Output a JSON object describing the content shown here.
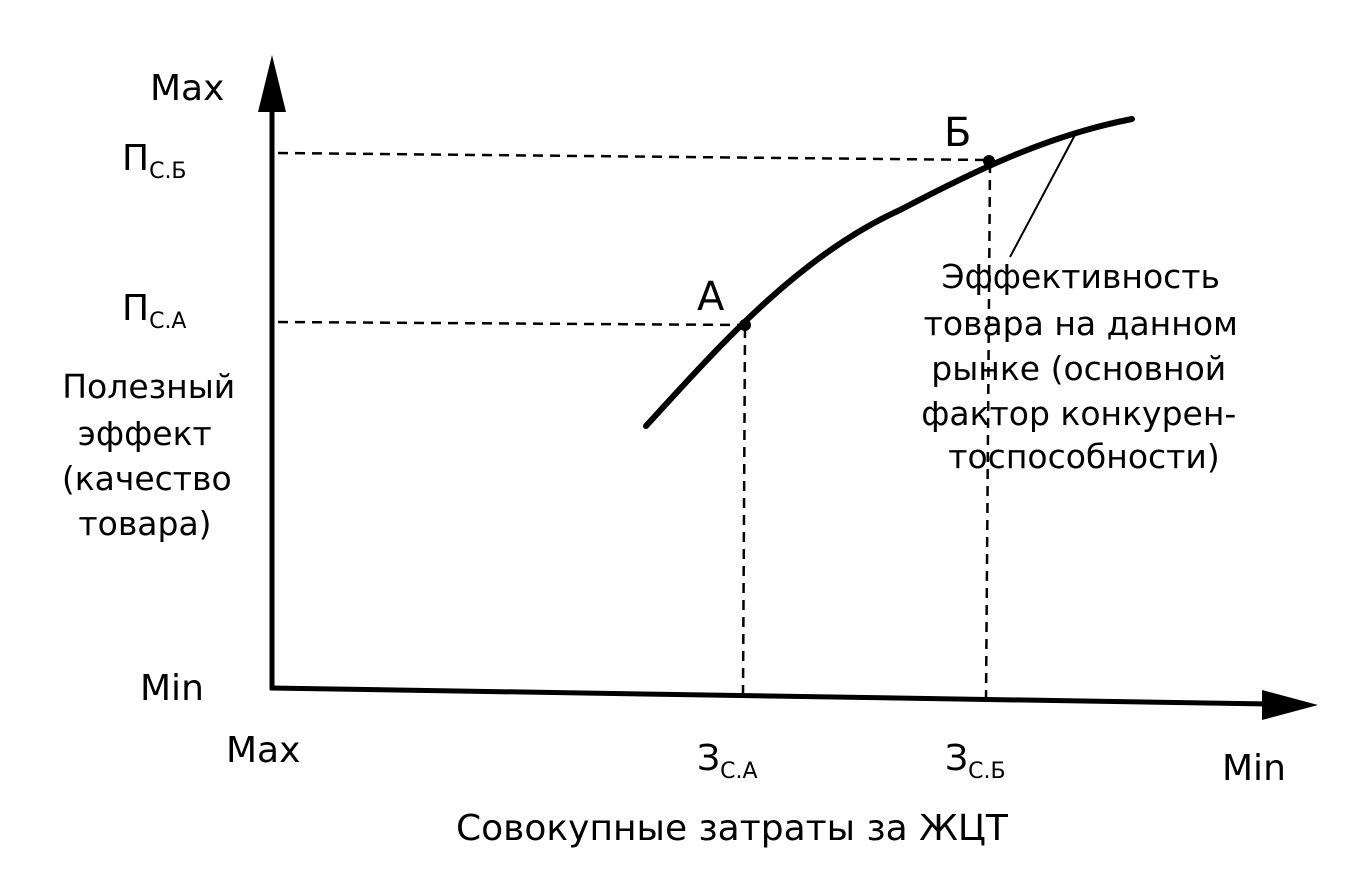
{
  "y_axis": {
    "max_label": "Max",
    "min_label": "Min",
    "title_lines": [
      "Полезный",
      "эффект",
      "(качество",
      "товара)"
    ],
    "tick_b": {
      "main": "П",
      "sub": "С.Б"
    },
    "tick_a": {
      "main": "П",
      "sub": "С.А"
    }
  },
  "x_axis": {
    "max_label": "Max",
    "min_label": "Min",
    "title": "Совокупные затраты за ЖЦТ",
    "tick_a": {
      "main": "З",
      "sub": "С.А"
    },
    "tick_b": {
      "main": "З",
      "sub": "С.Б"
    }
  },
  "points": {
    "a_label": "А",
    "b_label": "Б"
  },
  "curve_note_lines": [
    "Эффективность",
    "товара на данном",
    "рынке (основной",
    "фактор конкурен-",
    "тоспособности)"
  ],
  "colors": {
    "ink": "#000000",
    "background": "#ffffff"
  }
}
